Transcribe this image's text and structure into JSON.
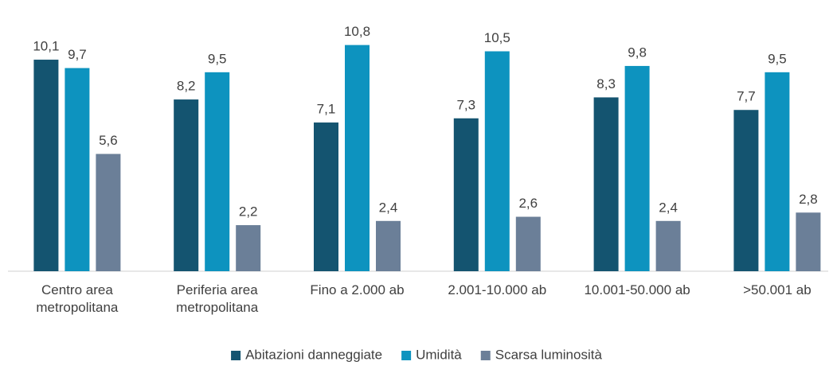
{
  "chart_data": {
    "type": "bar",
    "categories": [
      "Centro area metropolitana",
      "Periferia area metropolitana",
      "Fino a 2.000 ab",
      "2.001-10.000 ab",
      "10.001-50.000 ab",
      ">50.001 ab"
    ],
    "series": [
      {
        "name": "Abitazioni danneggiate",
        "color": "#145470",
        "values": [
          10.1,
          8.2,
          7.1,
          7.3,
          8.3,
          7.7
        ],
        "value_labels": [
          "10,1",
          "8,2",
          "7,1",
          "7,3",
          "8,3",
          "7,7"
        ]
      },
      {
        "name": "Umidità",
        "color": "#0d93bf",
        "values": [
          9.7,
          9.5,
          10.8,
          10.5,
          9.8,
          9.5
        ],
        "value_labels": [
          "9,7",
          "9,5",
          "10,8",
          "10,5",
          "9,8",
          "9,5"
        ]
      },
      {
        "name": "Scarsa luminosità",
        "color": "#6b7f98",
        "values": [
          5.6,
          2.2,
          2.4,
          2.6,
          2.4,
          2.8
        ],
        "value_labels": [
          "5,6",
          "2,2",
          "2,4",
          "2,6",
          "2,4",
          "2,8"
        ]
      }
    ],
    "ylim": [
      0,
      12
    ],
    "grid": false,
    "legend": "bottom"
  }
}
